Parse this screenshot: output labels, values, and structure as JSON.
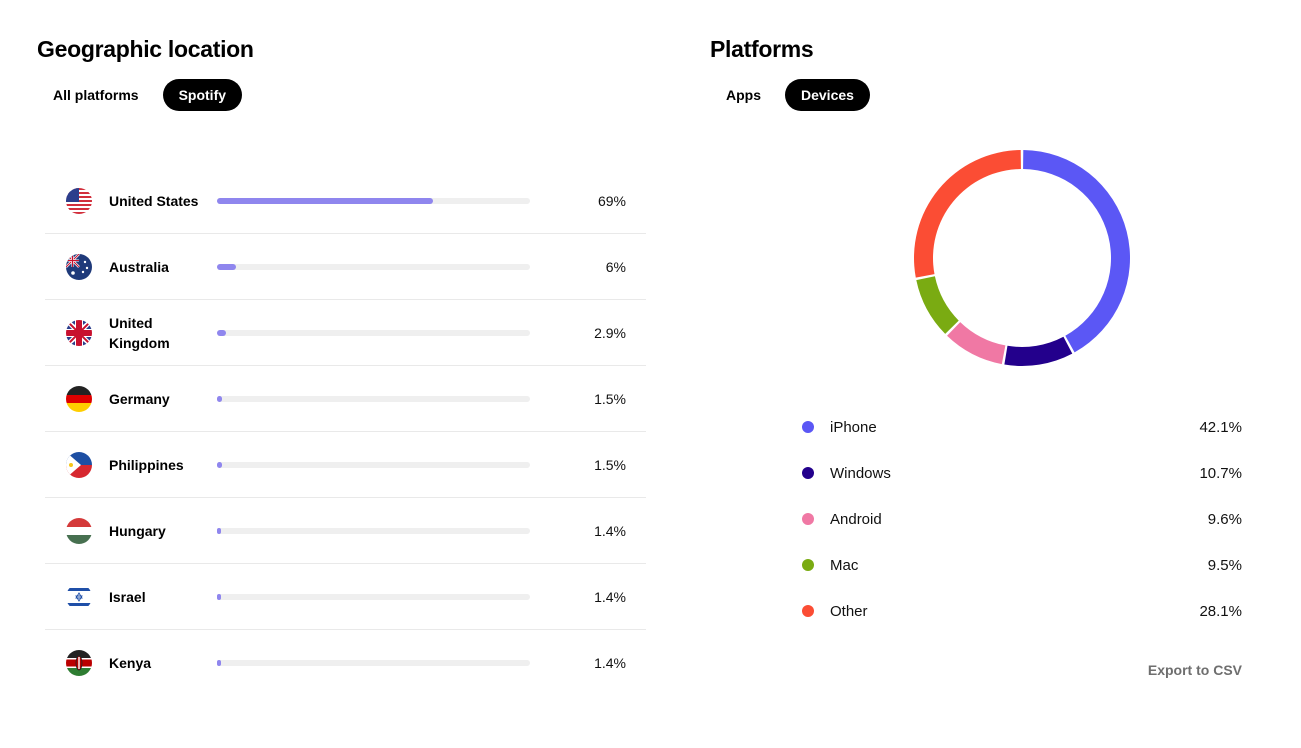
{
  "geo": {
    "title": "Geographic location",
    "tabs": [
      {
        "label": "All platforms",
        "active": false
      },
      {
        "label": "Spotify",
        "active": true
      }
    ],
    "accent": "#8f86ee",
    "rows": [
      {
        "country": "United States",
        "flag": "us-flag-icon",
        "value": 69,
        "label": "69%"
      },
      {
        "country": "Australia",
        "flag": "australia-flag-icon",
        "value": 6,
        "label": "6%"
      },
      {
        "country": "United Kingdom",
        "flag": "uk-flag-icon",
        "value": 2.9,
        "label": "2.9%"
      },
      {
        "country": "Germany",
        "flag": "germany-flag-icon",
        "value": 1.5,
        "label": "1.5%"
      },
      {
        "country": "Philippines",
        "flag": "philippines-flag-icon",
        "value": 1.5,
        "label": "1.5%"
      },
      {
        "country": "Hungary",
        "flag": "hungary-flag-icon",
        "value": 1.4,
        "label": "1.4%"
      },
      {
        "country": "Israel",
        "flag": "israel-flag-icon",
        "value": 1.4,
        "label": "1.4%"
      },
      {
        "country": "Kenya",
        "flag": "kenya-flag-icon",
        "value": 1.4,
        "label": "1.4%"
      }
    ]
  },
  "platforms": {
    "title": "Platforms",
    "tabs": [
      {
        "label": "Apps",
        "active": false
      },
      {
        "label": "Devices",
        "active": true
      }
    ],
    "export_label": "Export to CSV"
  },
  "chart_data": {
    "type": "pie",
    "categories": [
      "iPhone",
      "Windows",
      "Android",
      "Mac",
      "Other"
    ],
    "values": [
      42.1,
      10.7,
      9.6,
      9.5,
      28.1
    ],
    "labels": [
      "42.1%",
      "10.7%",
      "9.6%",
      "9.5%",
      "28.1%"
    ],
    "colors": [
      "#5b57f5",
      "#23008c",
      "#f078a4",
      "#7aab12",
      "#fb4d34"
    ],
    "donut": true,
    "legend": "bottom"
  }
}
